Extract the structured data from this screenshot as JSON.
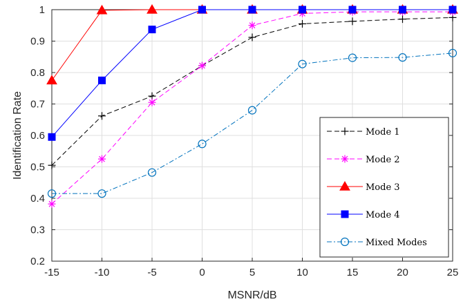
{
  "chart_data": {
    "type": "line",
    "xlabel": "MSNR/dB",
    "ylabel": "Identification Rate",
    "x": [
      -15,
      -10,
      -5,
      0,
      5,
      10,
      15,
      20,
      25
    ],
    "x_ticks": [
      "-15",
      "-10",
      "-5",
      "0",
      "5",
      "10",
      "15",
      "20",
      "25"
    ],
    "y_ticks": [
      "0.2",
      "0.3",
      "0.4",
      "0.5",
      "0.6",
      "0.7",
      "0.8",
      "0.9",
      "1"
    ],
    "xlim": [
      -15,
      25
    ],
    "ylim": [
      0.2,
      1.0
    ],
    "grid": true,
    "legend_position": "bottom-right",
    "series": [
      {
        "name": "Mode 1",
        "color": "#000000",
        "line_style": "dashed",
        "marker": "plus",
        "values": [
          0.505,
          0.662,
          0.725,
          0.822,
          0.912,
          0.955,
          0.963,
          0.97,
          0.975
        ]
      },
      {
        "name": "Mode 2",
        "color": "#ff00ff",
        "line_style": "dashed",
        "marker": "asterisk",
        "values": [
          0.382,
          0.525,
          0.705,
          0.822,
          0.95,
          0.988,
          0.993,
          0.993,
          0.993
        ]
      },
      {
        "name": "Mode 3",
        "color": "#ff0000",
        "line_style": "solid",
        "marker": "triangle",
        "values": [
          0.775,
          0.998,
          1.0,
          1.0,
          1.0,
          1.0,
          1.0,
          1.0,
          1.0
        ]
      },
      {
        "name": "Mode 4",
        "color": "#0000ff",
        "line_style": "solid",
        "marker": "square",
        "values": [
          0.595,
          0.775,
          0.937,
          1.0,
          1.0,
          1.0,
          1.0,
          1.0,
          1.0
        ]
      },
      {
        "name": "Mixed Modes",
        "color": "#0072bd",
        "line_style": "dashdot",
        "marker": "circle",
        "values": [
          0.415,
          0.415,
          0.482,
          0.573,
          0.68,
          0.827,
          0.847,
          0.848,
          0.862
        ]
      }
    ]
  }
}
